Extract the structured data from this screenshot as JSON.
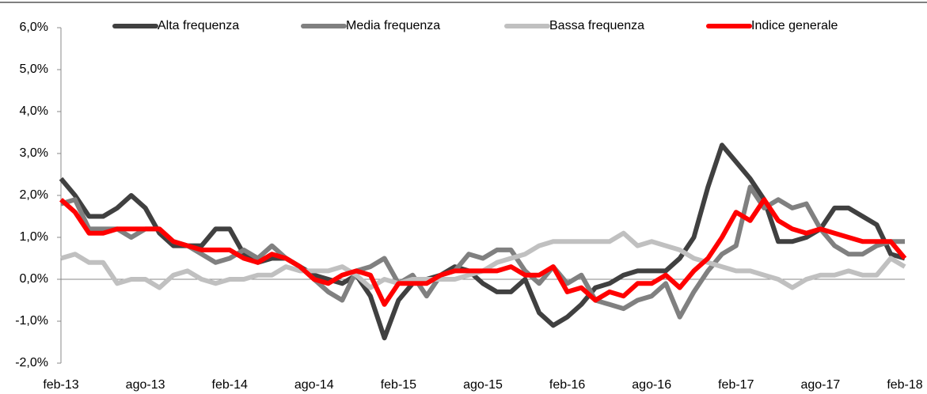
{
  "chart_data": {
    "type": "line",
    "categories": [
      "feb-13",
      null,
      null,
      null,
      null,
      null,
      "ago-13",
      null,
      null,
      null,
      null,
      null,
      "feb-14",
      null,
      null,
      null,
      null,
      null,
      "ago-14",
      null,
      null,
      null,
      null,
      null,
      "feb-15",
      null,
      null,
      null,
      null,
      null,
      "ago-15",
      null,
      null,
      null,
      null,
      null,
      "feb-16",
      null,
      null,
      null,
      null,
      null,
      "ago-16",
      null,
      null,
      null,
      null,
      null,
      "feb-17",
      null,
      null,
      null,
      null,
      null,
      "ago-17",
      null,
      null,
      null,
      null,
      null,
      "feb-18"
    ],
    "series": [
      {
        "name": "Alta frequenza",
        "color": "#404040",
        "values": [
          2.4,
          2.0,
          1.5,
          1.5,
          1.7,
          2.0,
          1.7,
          1.1,
          0.8,
          0.8,
          0.8,
          1.2,
          1.2,
          0.6,
          0.4,
          0.5,
          0.5,
          0.3,
          0.1,
          0.0,
          -0.1,
          0.1,
          -0.4,
          -1.4,
          -0.5,
          -0.1,
          0.0,
          0.1,
          0.3,
          0.2,
          -0.1,
          -0.3,
          -0.3,
          0.0,
          -0.8,
          -1.1,
          -0.9,
          -0.6,
          -0.2,
          -0.1,
          0.1,
          0.2,
          0.2,
          0.2,
          0.5,
          1.0,
          2.2,
          3.2,
          2.8,
          2.4,
          1.9,
          0.9,
          0.9,
          1.0,
          1.2,
          1.7,
          1.7,
          1.5,
          1.3,
          0.6,
          0.5
        ]
      },
      {
        "name": "Media frequenza",
        "color": "#808080",
        "values": [
          1.8,
          1.9,
          1.2,
          1.2,
          1.2,
          1.0,
          1.2,
          1.2,
          0.9,
          0.8,
          0.6,
          0.4,
          0.5,
          0.7,
          0.5,
          0.8,
          0.5,
          0.3,
          0.0,
          -0.3,
          -0.5,
          0.2,
          0.3,
          0.5,
          -0.1,
          0.1,
          -0.4,
          0.1,
          0.2,
          0.6,
          0.5,
          0.7,
          0.7,
          0.2,
          -0.1,
          0.3,
          -0.1,
          0.1,
          -0.5,
          -0.6,
          -0.7,
          -0.5,
          -0.4,
          -0.1,
          -0.9,
          -0.3,
          0.2,
          0.6,
          0.8,
          2.2,
          1.7,
          1.9,
          1.7,
          1.8,
          1.2,
          0.8,
          0.6,
          0.6,
          0.8,
          0.9,
          0.9
        ]
      },
      {
        "name": "Bassa frequenza",
        "color": "#c0c0c0",
        "values": [
          0.5,
          0.6,
          0.4,
          0.4,
          -0.1,
          0.0,
          0.0,
          -0.2,
          0.1,
          0.2,
          0.0,
          -0.1,
          0.0,
          0.0,
          0.1,
          0.1,
          0.3,
          0.2,
          0.2,
          0.2,
          0.3,
          0.1,
          -0.2,
          0.0,
          -0.1,
          0.0,
          0.0,
          0.0,
          0.0,
          0.1,
          0.2,
          0.4,
          0.5,
          0.6,
          0.8,
          0.9,
          0.9,
          0.9,
          0.9,
          0.9,
          1.1,
          0.8,
          0.9,
          0.8,
          0.7,
          0.5,
          0.4,
          0.3,
          0.2,
          0.2,
          0.1,
          0.0,
          -0.2,
          0.0,
          0.1,
          0.1,
          0.2,
          0.1,
          0.1,
          0.5,
          0.3
        ]
      },
      {
        "name": "Indice generale",
        "color": "#ff0000",
        "values": [
          1.9,
          1.6,
          1.1,
          1.1,
          1.2,
          1.2,
          1.2,
          1.2,
          0.9,
          0.8,
          0.7,
          0.7,
          0.7,
          0.5,
          0.4,
          0.6,
          0.5,
          0.3,
          0.0,
          -0.1,
          0.1,
          0.2,
          0.1,
          -0.6,
          -0.1,
          -0.1,
          -0.1,
          0.1,
          0.2,
          0.2,
          0.2,
          0.2,
          0.3,
          0.1,
          0.1,
          0.3,
          -0.3,
          -0.2,
          -0.5,
          -0.3,
          -0.4,
          -0.1,
          -0.1,
          0.1,
          -0.2,
          0.2,
          0.5,
          1.0,
          1.6,
          1.4,
          1.9,
          1.4,
          1.2,
          1.1,
          1.2,
          1.1,
          1.0,
          0.9,
          0.9,
          0.9,
          0.5
        ]
      }
    ],
    "ylim": [
      -2,
      6
    ],
    "yticks": [
      {
        "value": -2,
        "label": "-2,0%"
      },
      {
        "value": -1,
        "label": "-1,0%"
      },
      {
        "value": 0,
        "label": "0,0%"
      },
      {
        "value": 1,
        "label": "1,0%"
      },
      {
        "value": 2,
        "label": "2,0%"
      },
      {
        "value": 3,
        "label": "3,0%"
      },
      {
        "value": 4,
        "label": "4,0%"
      },
      {
        "value": 5,
        "label": "5,0%"
      },
      {
        "value": 6,
        "label": "6,0%"
      }
    ],
    "grid": false,
    "legend": "top"
  }
}
